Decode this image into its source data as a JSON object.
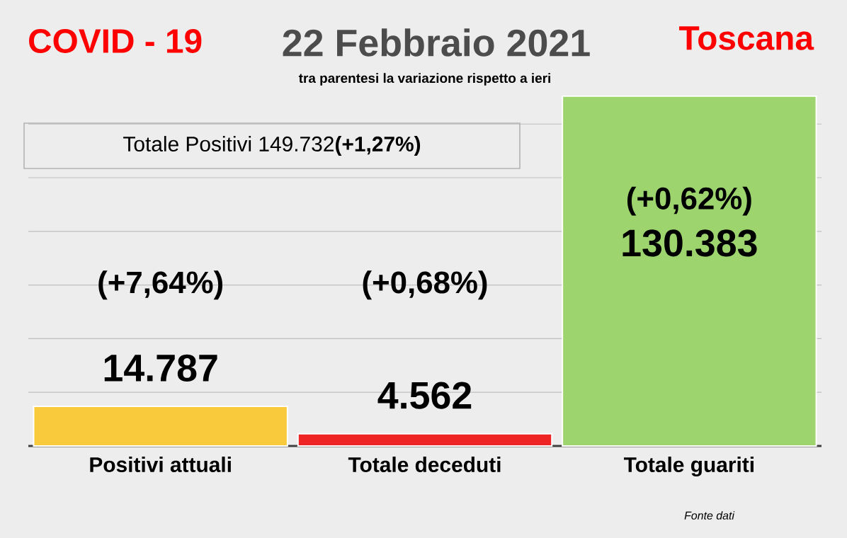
{
  "chart_data": {
    "type": "bar",
    "title": "22 Febbraio 2021",
    "subtitle": "tra parentesi la variazione rispetto a ieri",
    "categories": [
      "Positivi attuali",
      "Totale deceduti",
      "Totale guariti"
    ],
    "values": [
      14787,
      4562,
      130383
    ],
    "value_labels": [
      "14.787",
      "4.562",
      "130.383"
    ],
    "colors": [
      "#f9cb3c",
      "#ee2424",
      "#9dd46e"
    ],
    "yticks": [
      {
        "value": 20000,
        "label": null
      },
      {
        "value": 40000,
        "label": null
      },
      {
        "value": 60000,
        "label": null
      },
      {
        "value": 80000,
        "label": null
      },
      {
        "value": 100000,
        "label": null
      },
      {
        "value": 120000,
        "label": null
      }
    ],
    "grid": "y",
    "tick_labels": "x",
    "annotations": [
      "COVID - 19",
      "Toscana",
      "Totale Positivi    149.732**(+1,27%)**",
      "Fonte dati",
      "(+7,64%)",
      "(+0,68%)",
      "(+0,62%)"
    ]
  }
}
